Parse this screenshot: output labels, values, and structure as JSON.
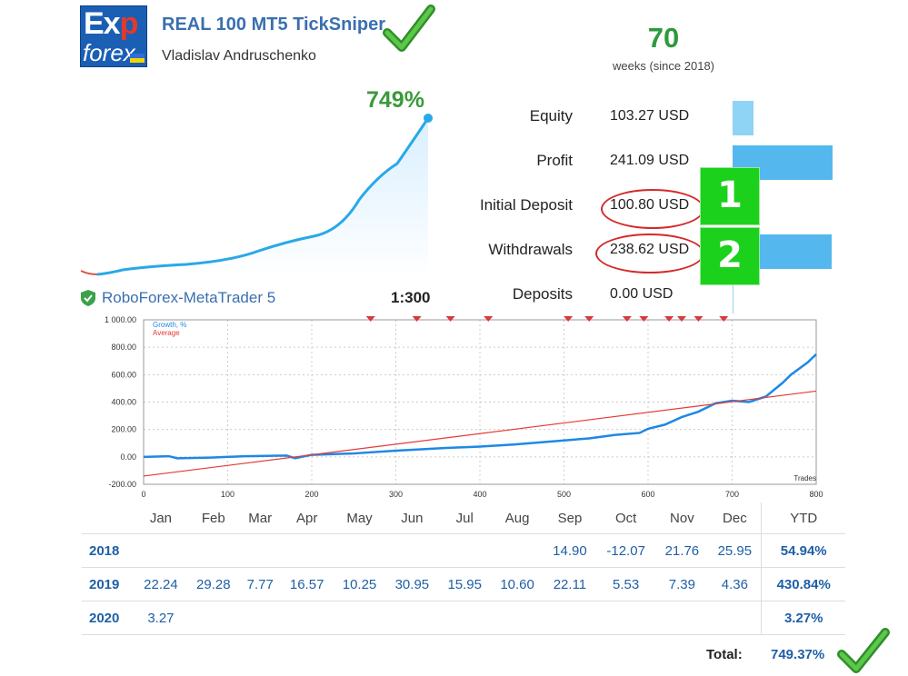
{
  "header": {
    "logo_text_top": "Exp",
    "logo_text_bottom": "forex",
    "title": "REAL 100 MT5 TickSniper",
    "author": "Vladislav Andruschenko",
    "weeks_value": "70",
    "weeks_label": "weeks (since 2018)"
  },
  "growth": {
    "percent_label": "749%"
  },
  "stats": [
    {
      "label": "Equity",
      "value": "103.27 USD",
      "bar_fraction": 0.21
    },
    {
      "label": "Profit",
      "value": "241.09 USD",
      "bar_fraction": 1.0
    },
    {
      "label": "Initial Deposit",
      "value": "100.80 USD",
      "bar_fraction": 0.21
    },
    {
      "label": "Withdrawals",
      "value": "238.62 USD",
      "bar_fraction": 0.99
    },
    {
      "label": "Deposits",
      "value": "0.00 USD",
      "bar_fraction": 0.0
    }
  ],
  "annotations": {
    "badge1": "1",
    "badge2": "2"
  },
  "server": {
    "name": "RoboForex-MetaTrader 5",
    "leverage": "1:300"
  },
  "chart_data": {
    "type": "line",
    "legend": [
      "Growth, %",
      "Average"
    ],
    "xlabel": "Trades",
    "ylim": [
      -200,
      1000
    ],
    "xlim": [
      0,
      800
    ],
    "y_ticks": [
      "1 000.00",
      "800.00",
      "600.00",
      "400.00",
      "200.00",
      "0.00",
      "-200.00"
    ],
    "x_ticks": [
      "0",
      "100",
      "200",
      "300",
      "400",
      "500",
      "600",
      "700",
      "800"
    ],
    "series": [
      {
        "name": "Growth, %",
        "x": [
          0,
          30,
          40,
          80,
          120,
          170,
          180,
          200,
          250,
          300,
          360,
          400,
          440,
          480,
          530,
          560,
          590,
          600,
          620,
          640,
          660,
          680,
          700,
          720,
          740,
          760,
          770,
          790,
          800
        ],
        "y": [
          0,
          5,
          -10,
          -5,
          5,
          10,
          -10,
          15,
          25,
          45,
          65,
          75,
          90,
          110,
          135,
          160,
          175,
          205,
          235,
          290,
          330,
          390,
          410,
          400,
          440,
          540,
          600,
          690,
          749
        ]
      },
      {
        "name": "Average",
        "x": [
          0,
          800
        ],
        "y": [
          -140,
          480
        ]
      }
    ]
  },
  "monthly": {
    "headers": [
      "Jan",
      "Feb",
      "Mar",
      "Apr",
      "May",
      "Jun",
      "Jul",
      "Aug",
      "Sep",
      "Oct",
      "Nov",
      "Dec",
      "YTD"
    ],
    "rows": [
      {
        "year": "2018",
        "values": [
          "",
          "",
          "",
          "",
          "",
          "",
          "",
          "",
          "14.90",
          "-12.07",
          "21.76",
          "25.95"
        ],
        "ytd": "54.94%"
      },
      {
        "year": "2019",
        "values": [
          "22.24",
          "29.28",
          "7.77",
          "16.57",
          "10.25",
          "30.95",
          "15.95",
          "10.60",
          "22.11",
          "5.53",
          "7.39",
          "4.36"
        ],
        "ytd": "430.84%"
      },
      {
        "year": "2020",
        "values": [
          "3.27",
          "",
          "",
          "",
          "",
          "",
          "",
          "",
          "",
          "",
          "",
          ""
        ],
        "ytd": "3.27%"
      }
    ],
    "total_label": "Total:",
    "total_value": "749.37%"
  },
  "colors": {
    "accent_green": "#2e9a3c",
    "growth_line": "#1e88e5",
    "average_line": "#e53935",
    "bar_blue": "#54b8ee",
    "highlight_red": "#d42a2a",
    "badge_green": "#1bd11b"
  },
  "icons": [
    "checkmark-icon",
    "shield-check-icon"
  ]
}
